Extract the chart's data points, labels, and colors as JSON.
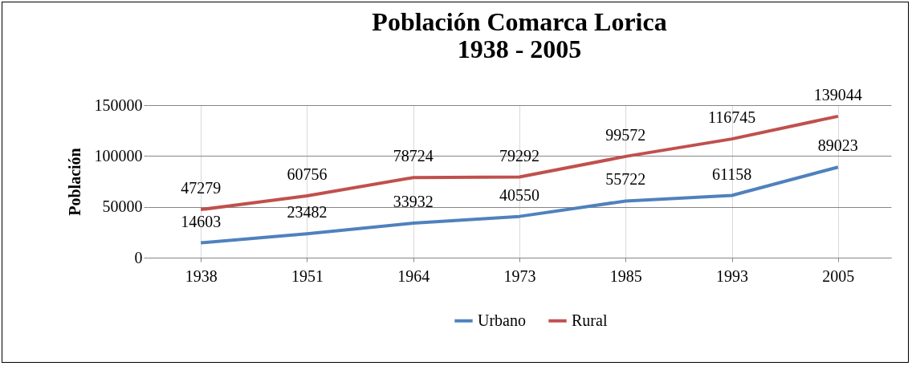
{
  "chart_data": {
    "type": "line",
    "title": "Población Comarca Lorica\n1938 - 2005",
    "ylabel": "Población",
    "categories": [
      "1938",
      "1951",
      "1964",
      "1973",
      "1985",
      "1993",
      "2005"
    ],
    "series": [
      {
        "name": "Urbano",
        "color": "#4f81bd",
        "values": [
          14603,
          23482,
          33932,
          40550,
          55722,
          61158,
          89023
        ]
      },
      {
        "name": "Rural",
        "color": "#c0504d",
        "values": [
          47279,
          60756,
          78724,
          79292,
          99572,
          116745,
          139044
        ]
      }
    ],
    "ylim": [
      0,
      150000
    ],
    "yticks": [
      0,
      50000,
      100000,
      150000
    ],
    "grid": true,
    "legend": "bottom",
    "data_labels": true,
    "marker": "none",
    "line_style": "solid"
  }
}
